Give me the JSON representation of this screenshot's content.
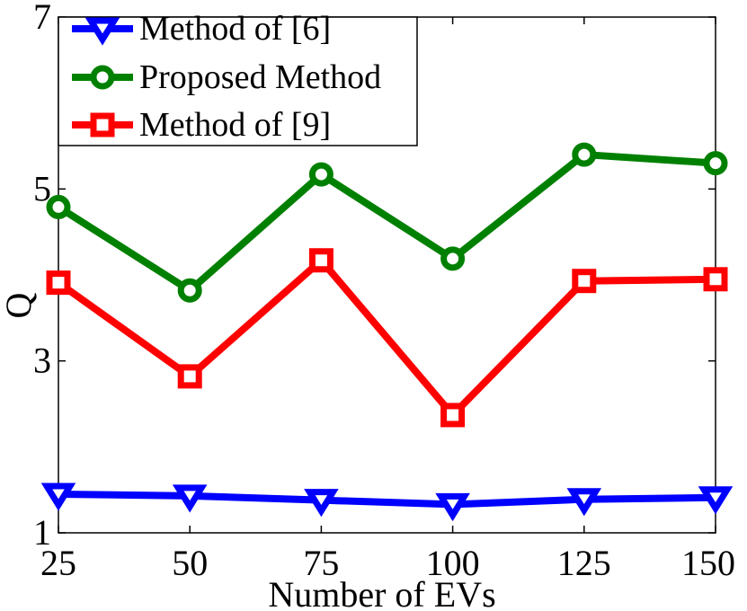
{
  "chart_data": {
    "type": "line",
    "x": [
      25,
      50,
      75,
      100,
      125,
      150
    ],
    "series": [
      {
        "name": "Method of [6]",
        "values": [
          1.45,
          1.43,
          1.38,
          1.33,
          1.39,
          1.41
        ],
        "color": "#0000ff",
        "marker": "triangle-down"
      },
      {
        "name": "Proposed Method",
        "values": [
          4.79,
          3.82,
          5.17,
          4.19,
          5.4,
          5.3
        ],
        "color": "#008000",
        "marker": "circle"
      },
      {
        "name": "Method of [9]",
        "values": [
          3.91,
          2.82,
          4.17,
          2.37,
          3.93,
          3.95
        ],
        "color": "#ff0000",
        "marker": "square"
      }
    ],
    "xlabel": "Number of EVs",
    "ylabel": "Q",
    "xlim": [
      25,
      150
    ],
    "ylim": [
      1,
      7
    ],
    "xticks": [
      "25",
      "50",
      "75",
      "100",
      "125",
      "150"
    ],
    "yticks": [
      "1",
      "3",
      "5",
      "7"
    ],
    "grid": false,
    "legend_position": "top-left"
  }
}
